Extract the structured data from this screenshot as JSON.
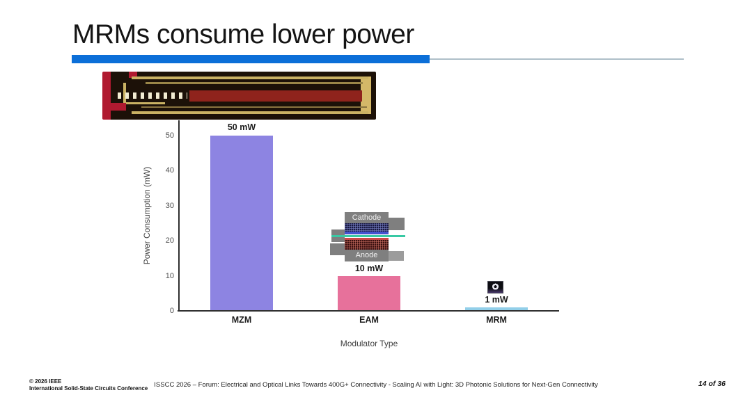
{
  "slide": {
    "title": "MRMs consume lower power",
    "accent_color": "#0c6fd8",
    "page_indicator": "14 of 36"
  },
  "chart_data": {
    "type": "bar",
    "categories": [
      "MZM",
      "EAM",
      "MRM"
    ],
    "values": [
      50,
      10,
      1
    ],
    "bar_labels": [
      "50 mW",
      "10 mW",
      "1 mW"
    ],
    "bar_colors": [
      "#8d84e2",
      "#e7719b",
      "#92cfe9"
    ],
    "title": "",
    "xlabel": "Modulator Type",
    "ylabel": "Power Consumption (mW)",
    "ylim": [
      0,
      50
    ],
    "yticks": [
      0,
      10,
      20,
      30,
      40,
      50
    ],
    "grid": false,
    "legend_position": "none"
  },
  "insets": {
    "eam_cross_section": {
      "cathode_label": "Cathode",
      "anode_label": "Anode"
    }
  },
  "footer": {
    "copyright_line1": "© 2026 IEEE",
    "copyright_line2": "International Solid-State Circuits Conference",
    "session_title": "ISSCC 2026 – Forum: Electrical and Optical Links Towards 400G+ Connectivity - Scaling AI with Light: 3D Photonic Solutions for Next-Gen Connectivity"
  }
}
